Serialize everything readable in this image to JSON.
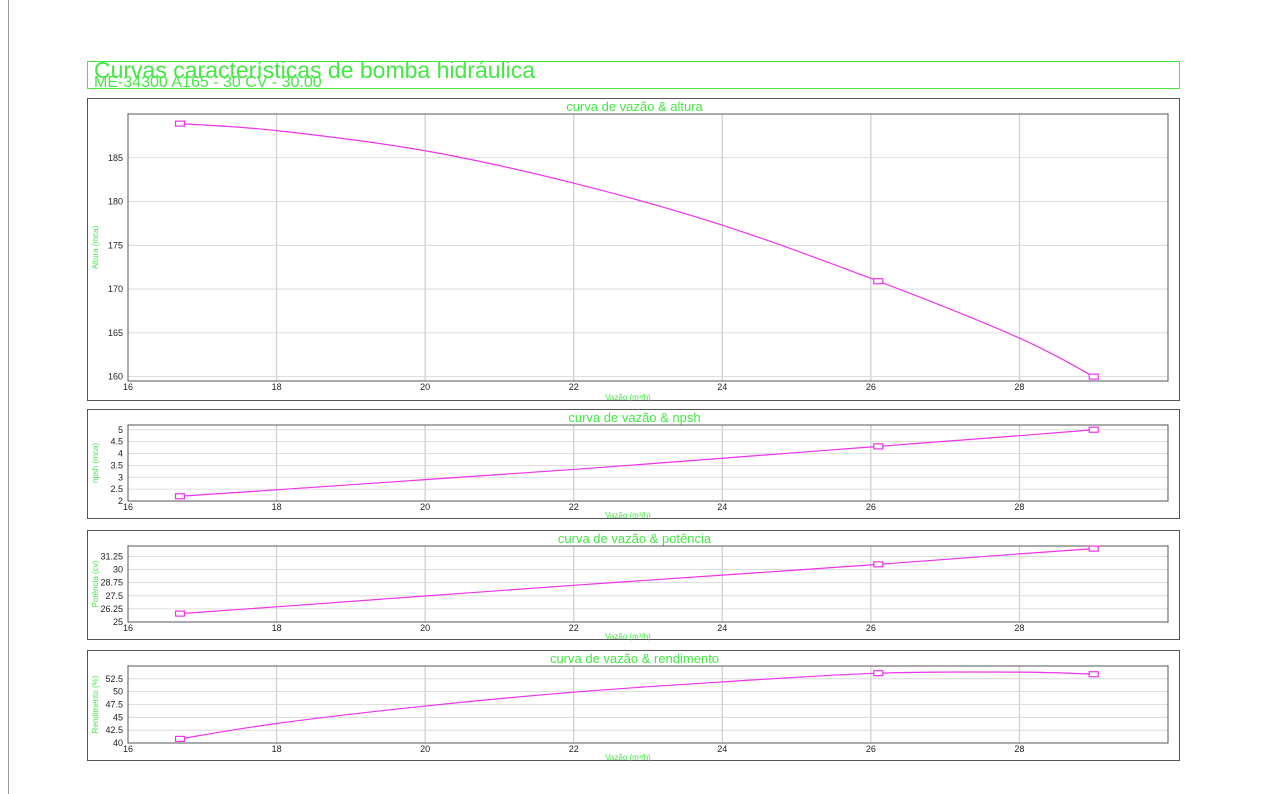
{
  "header": {
    "title": "Curvas características de bomba hidráulica",
    "subtitle": "ME-34300 A165 - 30 CV - 30.00"
  },
  "colors": {
    "accent": "#43e843",
    "series": "#ee33ee",
    "grid": "#d4d4d4",
    "frame": "#555555"
  },
  "chart_data": [
    {
      "type": "line",
      "title": "curva de vazão & altura",
      "xlabel": "Vazão (m³/h)",
      "ylabel": "Altura (mca)",
      "xlim": [
        16,
        30
      ],
      "ylim": [
        159.5,
        190
      ],
      "xticks": [
        16,
        18,
        20,
        22,
        24,
        26,
        28
      ],
      "yticks": [
        160,
        165,
        170,
        175,
        180,
        185
      ],
      "ytick_labels": [
        "160",
        "165",
        "170",
        "175",
        "180",
        "185"
      ],
      "points": [
        [
          16.7,
          188.9
        ],
        [
          26.1,
          170.9
        ],
        [
          29,
          160
        ]
      ],
      "curve_mid": [
        [
          18,
          188.1
        ],
        [
          20,
          185.8
        ],
        [
          22,
          182.1
        ],
        [
          24,
          177.3
        ],
        [
          28,
          164.4
        ]
      ],
      "grid": true
    },
    {
      "type": "line",
      "title": "curva de vazão & npsh",
      "xlabel": "Vazão (m³/h)",
      "ylabel": "npsh (mca)",
      "xlim": [
        16,
        30
      ],
      "ylim": [
        2,
        5.2
      ],
      "xticks": [
        16,
        18,
        20,
        22,
        24,
        26,
        28
      ],
      "yticks": [
        2,
        2.5,
        3,
        3.5,
        4,
        4.5,
        5
      ],
      "ytick_labels": [
        "2",
        "2.5",
        "3",
        "3.5",
        "4",
        "4.5",
        "5"
      ],
      "points": [
        [
          16.7,
          2.2
        ],
        [
          26.1,
          4.3
        ],
        [
          29,
          5
        ]
      ],
      "curve_mid": [
        [
          18,
          2.47
        ],
        [
          20,
          2.9
        ],
        [
          22,
          3.33
        ],
        [
          24,
          3.8
        ],
        [
          28,
          4.75
        ]
      ],
      "grid": true
    },
    {
      "type": "line",
      "title": "curva de vazão & potência",
      "xlabel": "Vazão (m³/h)",
      "ylabel": "Potência (cv)",
      "xlim": [
        16,
        30
      ],
      "ylim": [
        25,
        32.25
      ],
      "xticks": [
        16,
        18,
        20,
        22,
        24,
        26,
        28
      ],
      "yticks": [
        25,
        26.25,
        27.5,
        28.75,
        30,
        31.25
      ],
      "ytick_labels": [
        "25",
        "26.25",
        "27.5",
        "28.75",
        "30",
        "31.25"
      ],
      "points": [
        [
          16.7,
          25.8
        ],
        [
          26.1,
          30.5
        ],
        [
          29,
          32
        ]
      ],
      "curve_mid": [
        [
          18,
          26.45
        ],
        [
          20,
          27.48
        ],
        [
          22,
          28.5
        ],
        [
          24,
          29.47
        ],
        [
          28,
          31.5
        ]
      ],
      "grid": true
    },
    {
      "type": "line",
      "title": "curva de vazão & rendimento",
      "xlabel": "Vazão (m³/h)",
      "ylabel": "Rendimento (%)",
      "xlim": [
        16,
        30
      ],
      "ylim": [
        40,
        55
      ],
      "xticks": [
        16,
        18,
        20,
        22,
        24,
        26,
        28
      ],
      "yticks": [
        40,
        42.5,
        45,
        47.5,
        50,
        52.5
      ],
      "ytick_labels": [
        "40",
        "42.5",
        "45",
        "47.5",
        "50",
        "52.5"
      ],
      "points": [
        [
          16.7,
          40.8
        ],
        [
          26.1,
          53.6
        ],
        [
          29,
          53.4
        ]
      ],
      "curve_mid": [
        [
          18,
          43.8
        ],
        [
          20,
          47.2
        ],
        [
          22,
          49.9
        ],
        [
          24,
          51.9
        ],
        [
          28,
          53.8
        ]
      ],
      "grid": true
    }
  ]
}
